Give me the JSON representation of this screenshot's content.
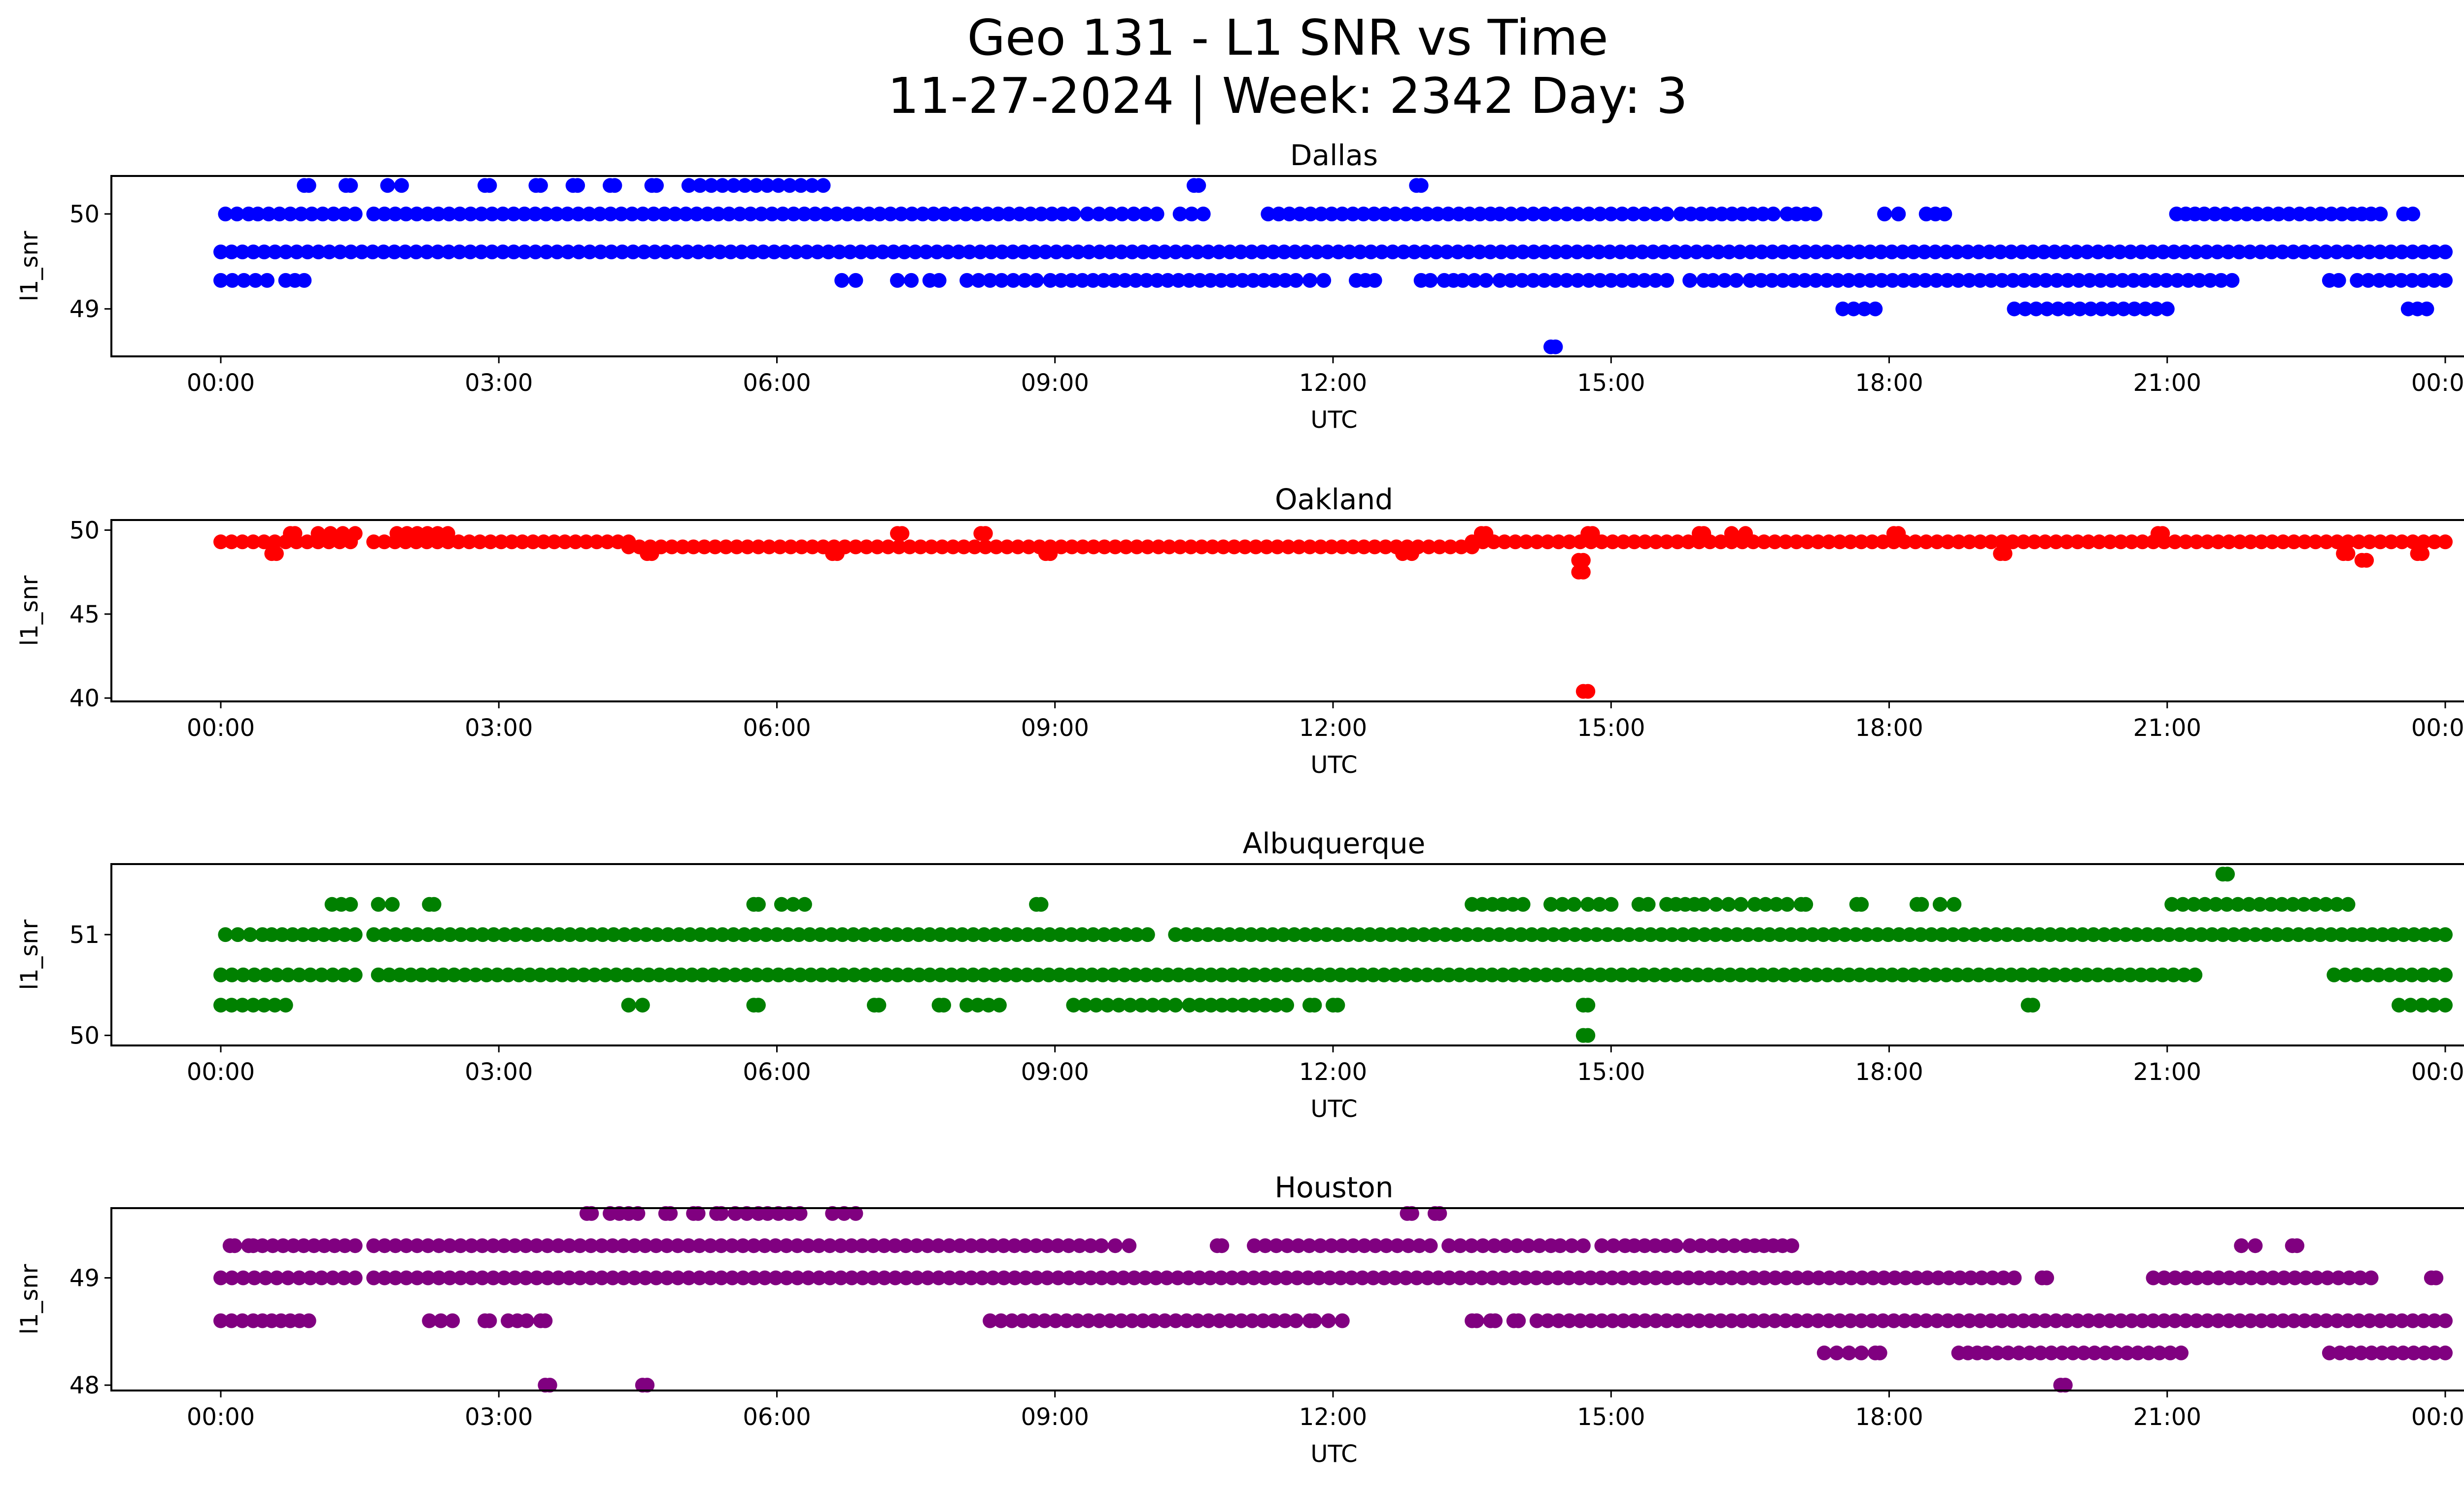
{
  "suptitle": {
    "line1": "Geo 131 - L1 SNR vs Time",
    "line2": "11-27-2024 | Week: 2342 Day: 3"
  },
  "chart_data": [
    {
      "type": "scatter",
      "title": "Dallas",
      "xlabel": "UTC",
      "ylabel": "l1_snr",
      "color": "#0000ff",
      "x_ticks": [
        "00:00",
        "03:00",
        "06:00",
        "09:00",
        "12:00",
        "15:00",
        "18:00",
        "21:00",
        "00:00"
      ],
      "x_range_hours": [
        0,
        24
      ],
      "y_ticks": [
        49,
        50
      ],
      "ylim": [
        48.5,
        50.4
      ],
      "bands": [
        {
          "y": 49.6,
          "segments": [
            [
              0,
              24
            ]
          ]
        },
        {
          "y": 50.0,
          "segments": [
            [
              0.05,
              0.3
            ],
            [
              0.4,
              1.45
            ],
            [
              1.65,
              9.2
            ],
            [
              9.35,
              10.1
            ],
            [
              10.35,
              10.6
            ],
            [
              11.3,
              13.7
            ],
            [
              13.8,
              15.6
            ],
            [
              15.75,
              16.75
            ],
            [
              16.9,
              17.2
            ],
            [
              17.95,
              18.1
            ],
            [
              18.4,
              18.6
            ],
            [
              21.1,
              21.3
            ],
            [
              21.4,
              23.0
            ],
            [
              23.1,
              23.3
            ],
            [
              23.55,
              23.65
            ]
          ]
        },
        {
          "y": 49.3,
          "segments": [
            [
              0,
              0.5
            ],
            [
              0.7,
              0.9
            ],
            [
              6.7,
              6.85
            ],
            [
              7.3,
              7.45
            ],
            [
              7.65,
              7.75
            ],
            [
              8.05,
              8.8
            ],
            [
              8.95,
              11.6
            ],
            [
              11.75,
              11.9
            ],
            [
              12.25,
              12.45
            ],
            [
              12.95,
              13.05
            ],
            [
              13.2,
              13.3
            ],
            [
              13.4,
              13.65
            ],
            [
              13.8,
              15.6
            ],
            [
              15.85,
              16.0
            ],
            [
              16.1,
              16.35
            ],
            [
              16.5,
              21.7
            ],
            [
              22.75,
              22.85
            ],
            [
              23.05,
              24.0
            ]
          ]
        },
        {
          "y": 49.0,
          "segments": [
            [
              17.5,
              17.85
            ],
            [
              19.35,
              21.0
            ],
            [
              23.6,
              23.8
            ]
          ]
        },
        {
          "y": 50.3,
          "segments": [
            [
              0.9,
              0.95
            ],
            [
              1.35,
              1.4
            ],
            [
              1.8,
              1.95
            ],
            [
              2.85,
              2.9
            ],
            [
              3.4,
              3.45
            ],
            [
              3.8,
              3.85
            ],
            [
              4.2,
              4.25
            ],
            [
              4.65,
              4.7
            ],
            [
              5.05,
              6.5
            ],
            [
              10.5,
              10.55
            ],
            [
              12.9,
              12.95
            ]
          ]
        },
        {
          "y": 48.6,
          "segments": [
            [
              14.35,
              14.4
            ]
          ]
        }
      ]
    },
    {
      "type": "scatter",
      "title": "Oakland",
      "xlabel": "UTC",
      "ylabel": "l1_snr",
      "color": "#ff0000",
      "x_ticks": [
        "00:00",
        "03:00",
        "06:00",
        "09:00",
        "12:00",
        "15:00",
        "18:00",
        "21:00",
        "00:00"
      ],
      "x_range_hours": [
        0,
        24
      ],
      "y_ticks": [
        40,
        45,
        50
      ],
      "ylim": [
        39.8,
        50.6
      ],
      "bands": [
        {
          "y": 49.3,
          "segments": [
            [
              0,
              1.4
            ],
            [
              1.65,
              4.4
            ],
            [
              13.5,
              24.0
            ]
          ]
        },
        {
          "y": 49.0,
          "segments": [
            [
              4.4,
              13.5
            ]
          ]
        },
        {
          "y": 49.8,
          "segments": [
            [
              0.75,
              0.8
            ],
            [
              1.05,
              1.45
            ],
            [
              1.9,
              2.45
            ],
            [
              7.3,
              7.35
            ],
            [
              8.2,
              8.25
            ],
            [
              13.6,
              13.65
            ],
            [
              14.75,
              14.8
            ],
            [
              15.95,
              16.0
            ],
            [
              16.3,
              16.45
            ],
            [
              18.05,
              18.1
            ],
            [
              20.9,
              20.95
            ]
          ]
        },
        {
          "y": 48.6,
          "segments": [
            [
              0.55,
              0.6
            ],
            [
              4.6,
              4.65
            ],
            [
              6.6,
              6.65
            ],
            [
              8.9,
              8.95
            ],
            [
              12.75,
              12.85
            ],
            [
              19.2,
              19.25
            ],
            [
              22.9,
              22.95
            ],
            [
              23.7,
              23.75
            ]
          ]
        },
        {
          "y": 48.2,
          "segments": [
            [
              14.65,
              14.7
            ],
            [
              23.1,
              23.15
            ]
          ]
        },
        {
          "y": 47.5,
          "segments": [
            [
              14.65,
              14.7
            ]
          ]
        },
        {
          "y": 40.4,
          "segments": [
            [
              14.7,
              14.75
            ]
          ]
        }
      ]
    },
    {
      "type": "scatter",
      "title": "Albuquerque",
      "xlabel": "UTC",
      "ylabel": "l1_snr",
      "color": "#008000",
      "x_ticks": [
        "00:00",
        "03:00",
        "06:00",
        "09:00",
        "12:00",
        "15:00",
        "18:00",
        "21:00",
        "00:00"
      ],
      "x_range_hours": [
        0,
        24
      ],
      "y_ticks": [
        50,
        51
      ],
      "ylim": [
        49.9,
        51.7
      ],
      "bands": [
        {
          "y": 50.6,
          "segments": [
            [
              0,
              1.45
            ],
            [
              1.7,
              21.3
            ],
            [
              22.8,
              24.0
            ]
          ]
        },
        {
          "y": 51.0,
          "segments": [
            [
              0.05,
              0.45
            ],
            [
              0.55,
              1.45
            ],
            [
              1.65,
              10.0
            ],
            [
              10.3,
              23.0
            ],
            [
              23.1,
              24.0
            ]
          ]
        },
        {
          "y": 50.3,
          "segments": [
            [
              0,
              0.7
            ],
            [
              4.4,
              4.55
            ],
            [
              5.75,
              5.8
            ],
            [
              7.05,
              7.1
            ],
            [
              7.75,
              7.8
            ],
            [
              8.05,
              8.4
            ],
            [
              9.2,
              10.3
            ],
            [
              10.45,
              11.5
            ],
            [
              11.75,
              11.8
            ],
            [
              12.0,
              12.05
            ],
            [
              14.7,
              14.75
            ],
            [
              19.5,
              19.55
            ],
            [
              23.5,
              24.0
            ]
          ]
        },
        {
          "y": 51.3,
          "segments": [
            [
              1.2,
              1.4
            ],
            [
              1.7,
              1.85
            ],
            [
              2.25,
              2.3
            ],
            [
              5.75,
              5.8
            ],
            [
              6.05,
              6.3
            ],
            [
              8.8,
              8.85
            ],
            [
              13.5,
              14.05
            ],
            [
              14.35,
              14.6
            ],
            [
              14.75,
              15.0
            ],
            [
              15.3,
              15.4
            ],
            [
              15.6,
              15.9
            ],
            [
              16.0,
              16.4
            ],
            [
              16.55,
              16.9
            ],
            [
              17.05,
              17.1
            ],
            [
              17.65,
              17.7
            ],
            [
              18.3,
              18.35
            ],
            [
              18.55,
              18.7
            ],
            [
              21.05,
              22.95
            ]
          ]
        },
        {
          "y": 50.0,
          "segments": [
            [
              14.7,
              14.75
            ]
          ]
        },
        {
          "y": 51.6,
          "segments": [
            [
              21.6,
              21.65
            ]
          ]
        }
      ]
    },
    {
      "type": "scatter",
      "title": "Houston",
      "xlabel": "UTC",
      "ylabel": "l1_snr",
      "color": "#800080",
      "x_ticks": [
        "00:00",
        "03:00",
        "06:00",
        "09:00",
        "12:00",
        "15:00",
        "18:00",
        "21:00",
        "00:00"
      ],
      "x_range_hours": [
        0,
        24
      ],
      "y_ticks": [
        48,
        49
      ],
      "ylim": [
        47.95,
        49.65
      ],
      "bands": [
        {
          "y": 49.0,
          "segments": [
            [
              0,
              1.45
            ],
            [
              1.65,
              19.35
            ],
            [
              19.65,
              19.7
            ],
            [
              20.85,
              23.2
            ],
            [
              23.85,
              23.9
            ]
          ]
        },
        {
          "y": 49.3,
          "segments": [
            [
              0.1,
              0.15
            ],
            [
              0.3,
              0.35
            ],
            [
              0.45,
              1.45
            ],
            [
              1.65,
              9.5
            ],
            [
              9.65,
              9.8
            ],
            [
              10.75,
              10.8
            ],
            [
              11.15,
              13.05
            ],
            [
              13.25,
              14.35
            ],
            [
              14.45,
              14.7
            ],
            [
              14.9,
              15.15
            ],
            [
              15.25,
              15.7
            ],
            [
              15.85,
              16.45
            ],
            [
              16.55,
              16.75
            ],
            [
              16.85,
              16.95
            ],
            [
              21.8,
              21.95
            ],
            [
              22.35,
              22.4
            ]
          ]
        },
        {
          "y": 48.6,
          "segments": [
            [
              0,
              0.35
            ],
            [
              0.45,
              0.75
            ],
            [
              0.85,
              0.95
            ],
            [
              2.25,
              2.5
            ],
            [
              2.85,
              2.9
            ],
            [
              3.1,
              3.3
            ],
            [
              3.45,
              3.5
            ],
            [
              8.3,
              11.6
            ],
            [
              11.75,
              11.8
            ],
            [
              11.95,
              12.1
            ],
            [
              13.5,
              13.55
            ],
            [
              13.7,
              13.75
            ],
            [
              13.95,
              14.0
            ],
            [
              14.2,
              24.0
            ]
          ]
        },
        {
          "y": 48.3,
          "segments": [
            [
              17.3,
              17.7
            ],
            [
              17.85,
              17.9
            ],
            [
              18.75,
              18.95
            ],
            [
              19.05,
              21.15
            ],
            [
              22.75,
              24.0
            ]
          ]
        },
        {
          "y": 49.6,
          "segments": [
            [
              3.95,
              4.0
            ],
            [
              4.2,
              4.5
            ],
            [
              4.8,
              4.85
            ],
            [
              5.1,
              5.15
            ],
            [
              5.35,
              5.4
            ],
            [
              5.55,
              5.8
            ],
            [
              5.9,
              6.25
            ],
            [
              6.6,
              6.85
            ],
            [
              12.8,
              12.85
            ],
            [
              13.1,
              13.15
            ]
          ]
        },
        {
          "y": 48.0,
          "segments": [
            [
              3.5,
              3.55
            ],
            [
              4.55,
              4.6
            ],
            [
              19.85,
              19.9
            ]
          ]
        }
      ]
    }
  ]
}
